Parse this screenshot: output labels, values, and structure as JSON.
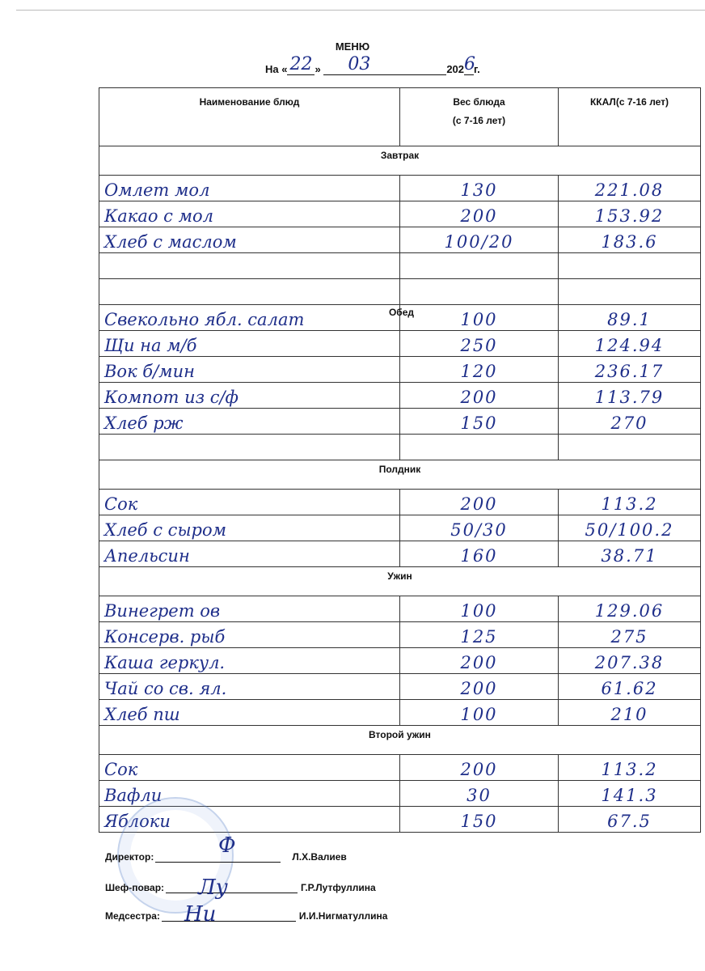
{
  "title": "МЕНЮ",
  "date": {
    "prefix": "На «",
    "day": "22",
    "mid": "»",
    "month": "03",
    "year_prefix": "202",
    "year_digit": "6",
    "suffix": "г."
  },
  "headers": {
    "name": "Наименование блюд",
    "weight": "Вес блюда",
    "weight_sub": "(с 7-16 лет)",
    "kcal": "ККАЛ(с 7-16 лет)"
  },
  "sections": [
    {
      "title": "Завтрак",
      "rows": [
        {
          "name": "Омлет мол",
          "weight": "130",
          "kcal": "221.08"
        },
        {
          "name": "Какао с мол",
          "weight": "200",
          "kcal": "153.92"
        },
        {
          "name": "Хлеб с маслом",
          "weight": "100/20",
          "kcal": "183.6"
        },
        {
          "name": "",
          "weight": "",
          "kcal": ""
        },
        {
          "name": "",
          "weight": "",
          "kcal": ""
        }
      ]
    },
    {
      "title": "Обед",
      "inline": true,
      "rows": [
        {
          "name": "Свекольно ябл. салат",
          "weight": "100",
          "kcal": "89.1"
        },
        {
          "name": "Щи на м/б",
          "weight": "250",
          "kcal": "124.94"
        },
        {
          "name": "Вок б/мин",
          "weight": "120",
          "kcal": "236.17"
        },
        {
          "name": "Компот из с/ф",
          "weight": "200",
          "kcal": "113.79"
        },
        {
          "name": "Хлеб рж",
          "weight": "150",
          "kcal": "270"
        },
        {
          "name": "",
          "weight": "",
          "kcal": ""
        }
      ]
    },
    {
      "title": "Полдник",
      "rows": [
        {
          "name": "Сок",
          "weight": "200",
          "kcal": "113.2"
        },
        {
          "name": "Хлеб с сыром",
          "weight": "50/30",
          "kcal": "50/100.2"
        },
        {
          "name": "Апельсин",
          "weight": "160",
          "kcal": "38.71"
        }
      ]
    },
    {
      "title": "Ужин",
      "rows": [
        {
          "name": "Винегрет ов",
          "weight": "100",
          "kcal": "129.06"
        },
        {
          "name": "Консерв. рыб",
          "weight": "125",
          "kcal": "275"
        },
        {
          "name": "Каша геркул.",
          "weight": "200",
          "kcal": "207.38"
        },
        {
          "name": "Чай со св. ял.",
          "weight": "200",
          "kcal": "61.62"
        },
        {
          "name": "Хлеб пш",
          "weight": "100",
          "kcal": "210"
        }
      ]
    },
    {
      "title": "Второй ужин",
      "rows": [
        {
          "name": "Сок",
          "weight": "200",
          "kcal": "113.2"
        },
        {
          "name": "Вафли",
          "weight": "30",
          "kcal": "141.3"
        },
        {
          "name": "Яблоки",
          "weight": "150",
          "kcal": "67.5"
        }
      ]
    }
  ],
  "signatures": [
    {
      "role": "Директор:",
      "name": "Л.Х.Валиев"
    },
    {
      "role": "Шеф-повар:",
      "name": "Г.Р.Лутфуллина"
    },
    {
      "role": "Медсестра:",
      "name": "И.И.Нигматуллина"
    }
  ],
  "colors": {
    "ink": "#1f2f8a",
    "stamp": "#5a82c8"
  }
}
